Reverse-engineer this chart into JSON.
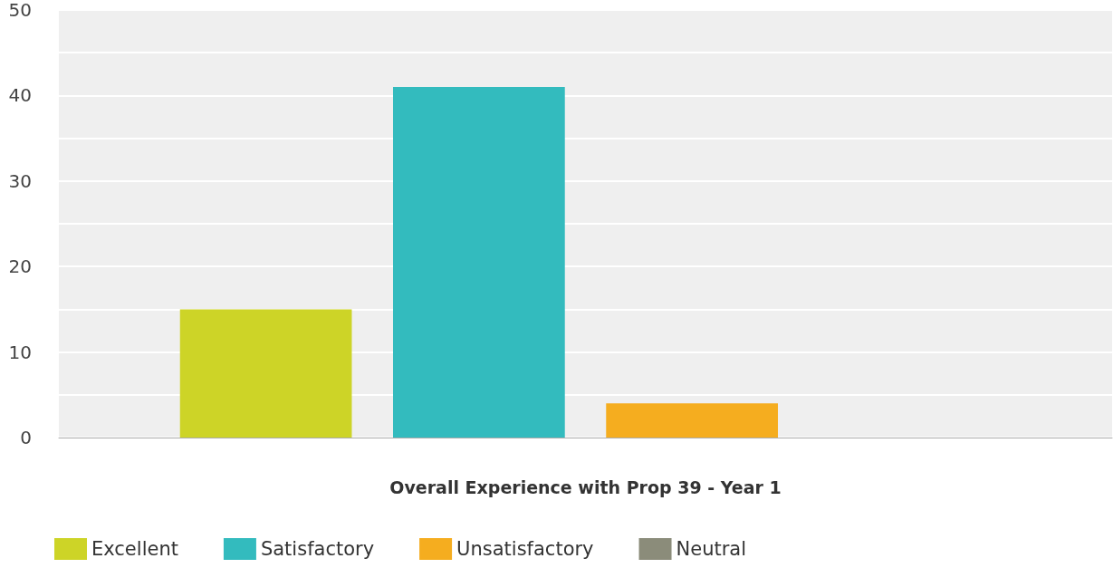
{
  "chart_data": {
    "type": "bar",
    "xlabel": "Overall Experience with Prop 39 - Year 1",
    "categories": [
      null
    ],
    "series": [
      {
        "name": "Excellent",
        "color": "#cdd427",
        "values": [
          15
        ]
      },
      {
        "name": "Satisfactory",
        "color": "#33bbbe",
        "values": [
          41
        ]
      },
      {
        "name": "Unsatisfactory",
        "color": "#f5ad1f",
        "values": [
          4
        ]
      },
      {
        "name": "Neutral",
        "color": "#8b8c7a",
        "values": [
          0
        ]
      }
    ],
    "ylim": [
      0,
      50
    ],
    "yticks": [
      0,
      {
        "value": 5,
        "label": null
      },
      10,
      {
        "value": 15,
        "label": null
      },
      20,
      {
        "value": 25,
        "label": null
      },
      30,
      {
        "value": 35,
        "label": null
      },
      40,
      {
        "value": 45,
        "label": null
      },
      50
    ],
    "grid": "y",
    "legend": "bottom left"
  }
}
